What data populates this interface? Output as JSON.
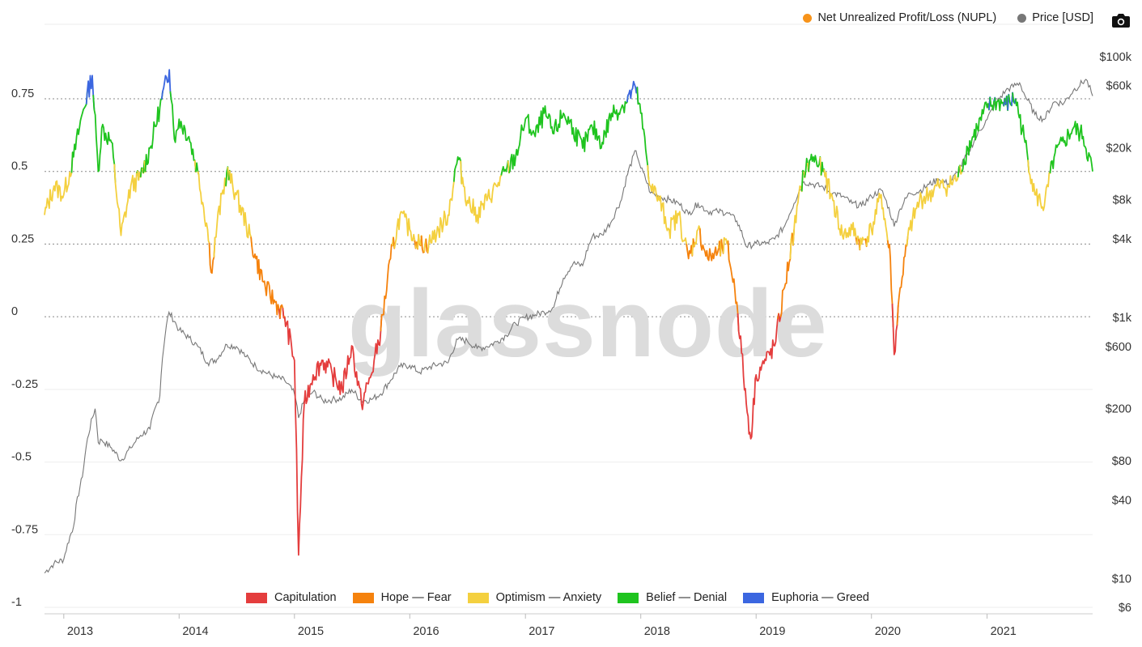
{
  "legend_top": [
    {
      "label": "Net Unrealized Profit/Loss (NUPL)",
      "color": "#f7931a"
    },
    {
      "label": "Price [USD]",
      "color": "#777777"
    }
  ],
  "legend_bottom": [
    {
      "label": "Capitulation",
      "color": "#e43d3d"
    },
    {
      "label": "Hope — Fear",
      "color": "#f5820d"
    },
    {
      "label": "Optimism — Anxiety",
      "color": "#f4d03f"
    },
    {
      "label": "Belief — Denial",
      "color": "#1fc41f"
    },
    {
      "label": "Euphoria — Greed",
      "color": "#3b66e0"
    }
  ],
  "watermark": "glassnode",
  "toolbar": {
    "camera_icon": "camera-icon"
  },
  "chart_data": {
    "type": "line",
    "x_range": [
      "2012-11-01",
      "2021-12-01"
    ],
    "x_ticks": [
      "2013",
      "2014",
      "2015",
      "2016",
      "2017",
      "2018",
      "2019",
      "2020",
      "2021"
    ],
    "y_left": {
      "range": [
        -1,
        0.95
      ],
      "ticks": [
        {
          "value": 0.75,
          "label": "0.75"
        },
        {
          "value": 0.5,
          "label": "0.5"
        },
        {
          "value": 0.25,
          "label": "0.25"
        },
        {
          "value": 0,
          "label": "0"
        },
        {
          "value": -0.25,
          "label": "-0.25"
        },
        {
          "value": -0.5,
          "label": "-0.5"
        },
        {
          "value": -0.75,
          "label": "-0.75"
        },
        {
          "value": -1,
          "label": "-1"
        }
      ],
      "dotted_gridlines": [
        0.75,
        0.5,
        0.25,
        0
      ]
    },
    "y_right": {
      "scale": "log",
      "range": [
        6,
        100000
      ],
      "ticks": [
        {
          "value": 100000,
          "label": "$100k"
        },
        {
          "value": 60000,
          "label": "$60k"
        },
        {
          "value": 20000,
          "label": "$20k"
        },
        {
          "value": 8000,
          "label": "$8k"
        },
        {
          "value": 4000,
          "label": "$4k"
        },
        {
          "value": 1000,
          "label": "$1k"
        },
        {
          "value": 600,
          "label": "$600"
        },
        {
          "value": 200,
          "label": "$200"
        },
        {
          "value": 80,
          "label": "$80"
        },
        {
          "value": 40,
          "label": "$40"
        },
        {
          "value": 10,
          "label": "$10"
        },
        {
          "value": 6,
          "label": "$6"
        }
      ]
    },
    "zones": [
      {
        "name": "Capitulation",
        "from": -1,
        "to": 0,
        "color": "#e43d3d"
      },
      {
        "name": "Hope — Fear",
        "from": 0,
        "to": 0.25,
        "color": "#f5820d"
      },
      {
        "name": "Optimism — Anxiety",
        "from": 0.25,
        "to": 0.5,
        "color": "#f4d03f"
      },
      {
        "name": "Belief — Denial",
        "from": 0.5,
        "to": 0.75,
        "color": "#1fc41f"
      },
      {
        "name": "Euphoria — Greed",
        "from": 0.75,
        "to": 1,
        "color": "#3b66e0"
      }
    ],
    "series": [
      {
        "name": "Net Unrealized Profit/Loss (NUPL)",
        "axis": "left",
        "points": [
          [
            "2012-11-01",
            0.35
          ],
          [
            "2012-12-01",
            0.45
          ],
          [
            "2013-01-01",
            0.42
          ],
          [
            "2013-02-01",
            0.55
          ],
          [
            "2013-03-01",
            0.7
          ],
          [
            "2013-04-01",
            0.83
          ],
          [
            "2013-04-20",
            0.5
          ],
          [
            "2013-05-01",
            0.65
          ],
          [
            "2013-06-01",
            0.6
          ],
          [
            "2013-07-01",
            0.28
          ],
          [
            "2013-08-01",
            0.45
          ],
          [
            "2013-09-01",
            0.48
          ],
          [
            "2013-10-01",
            0.58
          ],
          [
            "2013-11-01",
            0.72
          ],
          [
            "2013-12-01",
            0.85
          ],
          [
            "2013-12-20",
            0.6
          ],
          [
            "2014-01-01",
            0.68
          ],
          [
            "2014-02-01",
            0.62
          ],
          [
            "2014-03-01",
            0.5
          ],
          [
            "2014-04-01",
            0.3
          ],
          [
            "2014-04-15",
            0.15
          ],
          [
            "2014-05-01",
            0.32
          ],
          [
            "2014-06-01",
            0.5
          ],
          [
            "2014-07-01",
            0.42
          ],
          [
            "2014-08-01",
            0.32
          ],
          [
            "2014-09-01",
            0.2
          ],
          [
            "2014-10-01",
            0.1
          ],
          [
            "2014-11-01",
            0.05
          ],
          [
            "2014-12-01",
            0.0
          ],
          [
            "2015-01-01",
            -0.15
          ],
          [
            "2015-01-14",
            -0.82
          ],
          [
            "2015-02-01",
            -0.3
          ],
          [
            "2015-03-01",
            -0.2
          ],
          [
            "2015-04-01",
            -0.15
          ],
          [
            "2015-05-01",
            -0.2
          ],
          [
            "2015-06-01",
            -0.25
          ],
          [
            "2015-07-01",
            -0.1
          ],
          [
            "2015-08-01",
            -0.3
          ],
          [
            "2015-09-01",
            -0.2
          ],
          [
            "2015-10-01",
            -0.05
          ],
          [
            "2015-11-01",
            0.2
          ],
          [
            "2015-12-01",
            0.35
          ],
          [
            "2016-01-01",
            0.3
          ],
          [
            "2016-02-01",
            0.25
          ],
          [
            "2016-03-01",
            0.25
          ],
          [
            "2016-04-01",
            0.3
          ],
          [
            "2016-05-01",
            0.35
          ],
          [
            "2016-06-01",
            0.55
          ],
          [
            "2016-07-01",
            0.4
          ],
          [
            "2016-08-01",
            0.35
          ],
          [
            "2016-09-01",
            0.4
          ],
          [
            "2016-10-01",
            0.45
          ],
          [
            "2016-11-01",
            0.5
          ],
          [
            "2016-12-01",
            0.55
          ],
          [
            "2017-01-01",
            0.68
          ],
          [
            "2017-02-01",
            0.62
          ],
          [
            "2017-03-01",
            0.7
          ],
          [
            "2017-04-01",
            0.63
          ],
          [
            "2017-05-01",
            0.7
          ],
          [
            "2017-06-01",
            0.65
          ],
          [
            "2017-07-01",
            0.58
          ],
          [
            "2017-08-01",
            0.65
          ],
          [
            "2017-09-01",
            0.6
          ],
          [
            "2017-10-01",
            0.7
          ],
          [
            "2017-11-01",
            0.72
          ],
          [
            "2017-12-15",
            0.79
          ],
          [
            "2018-01-01",
            0.7
          ],
          [
            "2018-02-01",
            0.45
          ],
          [
            "2018-03-01",
            0.4
          ],
          [
            "2018-04-01",
            0.3
          ],
          [
            "2018-05-01",
            0.35
          ],
          [
            "2018-06-01",
            0.2
          ],
          [
            "2018-07-01",
            0.3
          ],
          [
            "2018-08-01",
            0.2
          ],
          [
            "2018-09-01",
            0.22
          ],
          [
            "2018-10-01",
            0.25
          ],
          [
            "2018-11-01",
            0.05
          ],
          [
            "2018-12-01",
            -0.3
          ],
          [
            "2018-12-15",
            -0.42
          ],
          [
            "2019-01-01",
            -0.2
          ],
          [
            "2019-02-01",
            -0.15
          ],
          [
            "2019-03-01",
            -0.1
          ],
          [
            "2019-04-01",
            0.1
          ],
          [
            "2019-05-01",
            0.3
          ],
          [
            "2019-06-01",
            0.5
          ],
          [
            "2019-07-01",
            0.55
          ],
          [
            "2019-08-01",
            0.5
          ],
          [
            "2019-09-01",
            0.4
          ],
          [
            "2019-10-01",
            0.28
          ],
          [
            "2019-11-01",
            0.3
          ],
          [
            "2019-12-01",
            0.25
          ],
          [
            "2020-01-01",
            0.3
          ],
          [
            "2020-02-01",
            0.42
          ],
          [
            "2020-03-01",
            0.2
          ],
          [
            "2020-03-13",
            -0.13
          ],
          [
            "2020-04-01",
            0.1
          ],
          [
            "2020-05-01",
            0.3
          ],
          [
            "2020-06-01",
            0.4
          ],
          [
            "2020-07-01",
            0.42
          ],
          [
            "2020-08-01",
            0.45
          ],
          [
            "2020-09-01",
            0.45
          ],
          [
            "2020-10-01",
            0.48
          ],
          [
            "2020-11-01",
            0.58
          ],
          [
            "2020-12-01",
            0.65
          ],
          [
            "2021-01-01",
            0.72
          ],
          [
            "2021-02-01",
            0.74
          ],
          [
            "2021-03-01",
            0.73
          ],
          [
            "2021-04-01",
            0.75
          ],
          [
            "2021-05-01",
            0.6
          ],
          [
            "2021-06-01",
            0.42
          ],
          [
            "2021-07-01",
            0.38
          ],
          [
            "2021-08-01",
            0.55
          ],
          [
            "2021-09-01",
            0.6
          ],
          [
            "2021-10-01",
            0.65
          ],
          [
            "2021-11-01",
            0.62
          ],
          [
            "2021-12-01",
            0.5
          ]
        ]
      },
      {
        "name": "Price [USD]",
        "axis": "right",
        "color": "#777777",
        "points": [
          [
            "2012-11-01",
            11
          ],
          [
            "2012-12-01",
            13
          ],
          [
            "2013-01-01",
            14
          ],
          [
            "2013-02-01",
            25
          ],
          [
            "2013-03-01",
            60
          ],
          [
            "2013-04-10",
            200
          ],
          [
            "2013-04-20",
            110
          ],
          [
            "2013-05-01",
            115
          ],
          [
            "2013-06-01",
            100
          ],
          [
            "2013-07-01",
            80
          ],
          [
            "2013-08-01",
            100
          ],
          [
            "2013-09-01",
            125
          ],
          [
            "2013-10-01",
            140
          ],
          [
            "2013-11-01",
            250
          ],
          [
            "2013-11-30",
            1100
          ],
          [
            "2014-01-01",
            800
          ],
          [
            "2014-02-01",
            700
          ],
          [
            "2014-03-01",
            600
          ],
          [
            "2014-04-01",
            450
          ],
          [
            "2014-05-01",
            480
          ],
          [
            "2014-06-01",
            620
          ],
          [
            "2014-07-01",
            600
          ],
          [
            "2014-08-01",
            500
          ],
          [
            "2014-09-01",
            420
          ],
          [
            "2014-10-01",
            380
          ],
          [
            "2014-11-01",
            350
          ],
          [
            "2014-12-01",
            330
          ],
          [
            "2015-01-01",
            260
          ],
          [
            "2015-01-14",
            170
          ],
          [
            "2015-02-01",
            230
          ],
          [
            "2015-03-01",
            270
          ],
          [
            "2015-04-01",
            230
          ],
          [
            "2015-05-01",
            235
          ],
          [
            "2015-06-01",
            240
          ],
          [
            "2015-07-01",
            280
          ],
          [
            "2015-08-01",
            230
          ],
          [
            "2015-09-01",
            235
          ],
          [
            "2015-10-01",
            260
          ],
          [
            "2015-11-01",
            330
          ],
          [
            "2015-12-01",
            420
          ],
          [
            "2016-01-01",
            430
          ],
          [
            "2016-02-01",
            380
          ],
          [
            "2016-03-01",
            415
          ],
          [
            "2016-04-01",
            440
          ],
          [
            "2016-05-01",
            450
          ],
          [
            "2016-06-01",
            680
          ],
          [
            "2016-07-01",
            660
          ],
          [
            "2016-08-01",
            580
          ],
          [
            "2016-09-01",
            600
          ],
          [
            "2016-10-01",
            650
          ],
          [
            "2016-11-01",
            730
          ],
          [
            "2016-12-01",
            900
          ],
          [
            "2017-01-01",
            1000
          ],
          [
            "2017-02-01",
            1050
          ],
          [
            "2017-03-01",
            1100
          ],
          [
            "2017-04-01",
            1200
          ],
          [
            "2017-05-01",
            2000
          ],
          [
            "2017-06-01",
            2600
          ],
          [
            "2017-07-01",
            2500
          ],
          [
            "2017-08-01",
            4200
          ],
          [
            "2017-09-01",
            4300
          ],
          [
            "2017-10-01",
            5500
          ],
          [
            "2017-11-01",
            8000
          ],
          [
            "2017-12-17",
            19000
          ],
          [
            "2018-01-01",
            14000
          ],
          [
            "2018-02-01",
            9000
          ],
          [
            "2018-03-01",
            8500
          ],
          [
            "2018-04-01",
            8000
          ],
          [
            "2018-05-01",
            7500
          ],
          [
            "2018-06-01",
            6200
          ],
          [
            "2018-07-01",
            7500
          ],
          [
            "2018-08-01",
            6500
          ],
          [
            "2018-09-01",
            6500
          ],
          [
            "2018-10-01",
            6400
          ],
          [
            "2018-11-01",
            5500
          ],
          [
            "2018-12-01",
            3500
          ],
          [
            "2019-01-01",
            3700
          ],
          [
            "2019-02-01",
            3700
          ],
          [
            "2019-03-01",
            4000
          ],
          [
            "2019-04-01",
            5000
          ],
          [
            "2019-05-01",
            7500
          ],
          [
            "2019-06-01",
            11000
          ],
          [
            "2019-07-01",
            10500
          ],
          [
            "2019-08-01",
            10000
          ],
          [
            "2019-09-01",
            9000
          ],
          [
            "2019-10-01",
            8500
          ],
          [
            "2019-11-01",
            7500
          ],
          [
            "2019-12-01",
            7200
          ],
          [
            "2020-01-01",
            8500
          ],
          [
            "2020-02-01",
            9500
          ],
          [
            "2020-03-13",
            5000
          ],
          [
            "2020-04-01",
            6800
          ],
          [
            "2020-05-01",
            9000
          ],
          [
            "2020-06-01",
            9300
          ],
          [
            "2020-07-01",
            10500
          ],
          [
            "2020-08-01",
            11500
          ],
          [
            "2020-09-01",
            10600
          ],
          [
            "2020-10-01",
            13000
          ],
          [
            "2020-11-01",
            18000
          ],
          [
            "2020-12-01",
            25000
          ],
          [
            "2021-01-01",
            33000
          ],
          [
            "2021-02-01",
            45000
          ],
          [
            "2021-03-01",
            55000
          ],
          [
            "2021-04-14",
            63000
          ],
          [
            "2021-05-01",
            50000
          ],
          [
            "2021-06-01",
            36000
          ],
          [
            "2021-07-01",
            33000
          ],
          [
            "2021-08-01",
            45000
          ],
          [
            "2021-09-01",
            44000
          ],
          [
            "2021-10-01",
            55000
          ],
          [
            "2021-11-10",
            67000
          ],
          [
            "2021-12-01",
            50000
          ]
        ]
      }
    ]
  }
}
